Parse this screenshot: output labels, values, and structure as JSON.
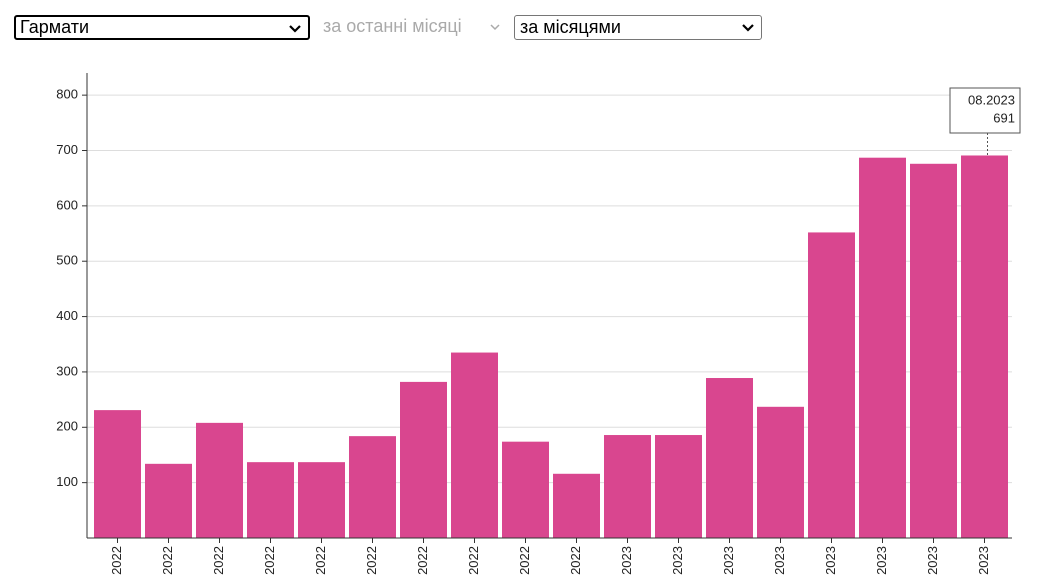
{
  "controls": [
    {
      "value": "Гармати"
    },
    {
      "value": "за останні місяці"
    },
    {
      "value": "за місяцями"
    }
  ],
  "chart_data": {
    "type": "bar",
    "categories": [
      "2022",
      "2022",
      "2022",
      "2022",
      "2022",
      "2022",
      "2022",
      "2022",
      "2022",
      "2022",
      "2023",
      "2023",
      "2023",
      "2023",
      "2023",
      "2023",
      "2023",
      "2023"
    ],
    "values": [
      231,
      134,
      208,
      137,
      137,
      184,
      282,
      335,
      174,
      116,
      186,
      186,
      289,
      237,
      552,
      687,
      676,
      691
    ],
    "color": "#d9468f",
    "ylim": [
      0,
      840
    ],
    "yticks": [
      100,
      200,
      300,
      400,
      500,
      600,
      700,
      800
    ],
    "grid": true,
    "annotation": "08.2023"
  }
}
